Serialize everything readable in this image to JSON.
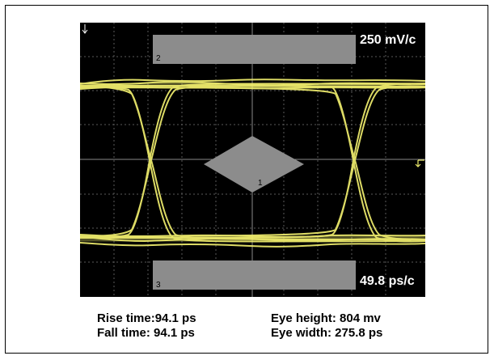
{
  "scope": {
    "vertical_scale": "250 mV/c",
    "horizontal_scale": "49.8 ps/c",
    "mask_labels": [
      "1",
      "2",
      "3"
    ],
    "trigger_marker": "T1"
  },
  "measurements": {
    "rise_time": "Rise time:94.1 ps",
    "fall_time": "Fall time: 94.1 ps",
    "eye_height": "Eye height: 804 mv",
    "eye_width": "Eye width: 275.8 ps"
  },
  "colors": {
    "background": "#000000",
    "trace": "#f0ee6e",
    "mask": "#8c8c8c",
    "grid": "#5a5a5a"
  }
}
